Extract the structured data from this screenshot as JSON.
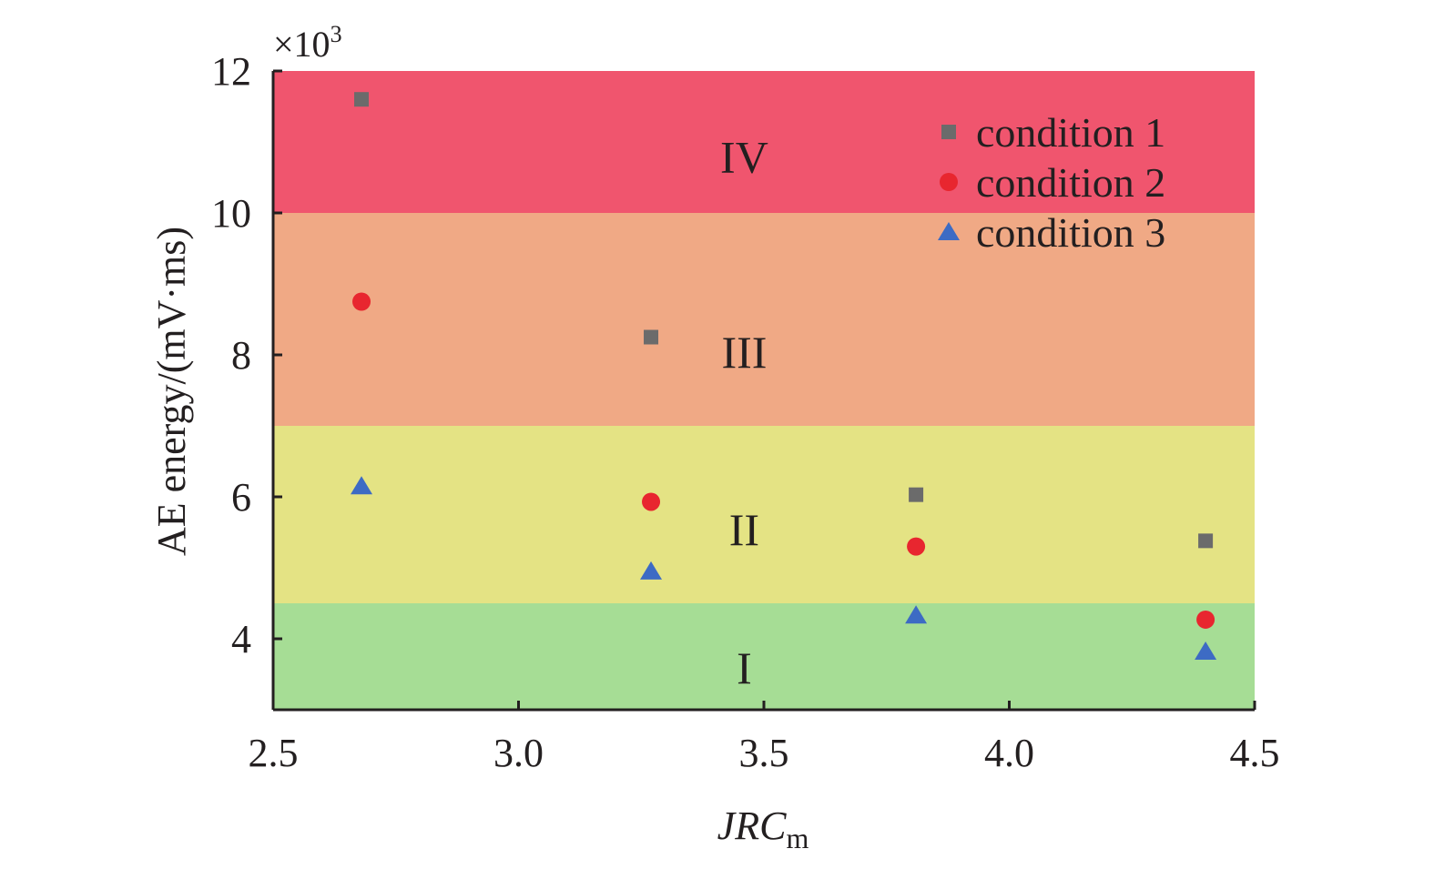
{
  "chart_data": {
    "type": "scatter",
    "title": "",
    "xlabel": "JRC",
    "xlabel_subscript": "m",
    "ylabel": "AE energy/(mV·ms)",
    "y_multiplier": {
      "base": "×10",
      "exponent": "3"
    },
    "xlim": [
      2.5,
      4.5
    ],
    "ylim": [
      3,
      12
    ],
    "x_ticks": [
      {
        "value": 2.5,
        "label": "2.5"
      },
      {
        "value": 3.0,
        "label": "3.0"
      },
      {
        "value": 3.5,
        "label": "3.5"
      },
      {
        "value": 4.0,
        "label": "4.0"
      },
      {
        "value": 4.5,
        "label": "4.5"
      }
    ],
    "y_ticks": [
      {
        "value": 4,
        "label": "4"
      },
      {
        "value": 6,
        "label": "6"
      },
      {
        "value": 8,
        "label": "8"
      },
      {
        "value": 10,
        "label": "10"
      },
      {
        "value": 12,
        "label": "12"
      }
    ],
    "grid": false,
    "legend_position": "top-right",
    "zones": [
      {
        "label": "I",
        "y_from": 3,
        "y_to": 4.5,
        "color": "#a6dd95"
      },
      {
        "label": "II",
        "y_from": 4.5,
        "y_to": 7,
        "color": "#e4e384"
      },
      {
        "label": "III",
        "y_from": 7,
        "y_to": 10,
        "color": "#f0a985"
      },
      {
        "label": "IV",
        "y_from": 10,
        "y_to": 12,
        "color": "#f0556e"
      }
    ],
    "series": [
      {
        "name": "condition 1",
        "marker": "square",
        "color": "#6b6b6b",
        "points": [
          {
            "x": 2.68,
            "y": 11.6
          },
          {
            "x": 3.27,
            "y": 8.25
          },
          {
            "x": 3.81,
            "y": 6.03
          },
          {
            "x": 4.4,
            "y": 5.38
          }
        ]
      },
      {
        "name": "condition 2",
        "marker": "circle",
        "color": "#e8262f",
        "points": [
          {
            "x": 2.68,
            "y": 8.75
          },
          {
            "x": 3.27,
            "y": 5.93
          },
          {
            "x": 3.81,
            "y": 5.3
          },
          {
            "x": 4.4,
            "y": 4.27
          }
        ]
      },
      {
        "name": "condition 3",
        "marker": "triangle",
        "color": "#3d6bc4",
        "points": [
          {
            "x": 2.68,
            "y": 6.15
          },
          {
            "x": 3.27,
            "y": 4.95
          },
          {
            "x": 3.81,
            "y": 4.33
          },
          {
            "x": 4.4,
            "y": 3.82
          }
        ]
      }
    ]
  }
}
